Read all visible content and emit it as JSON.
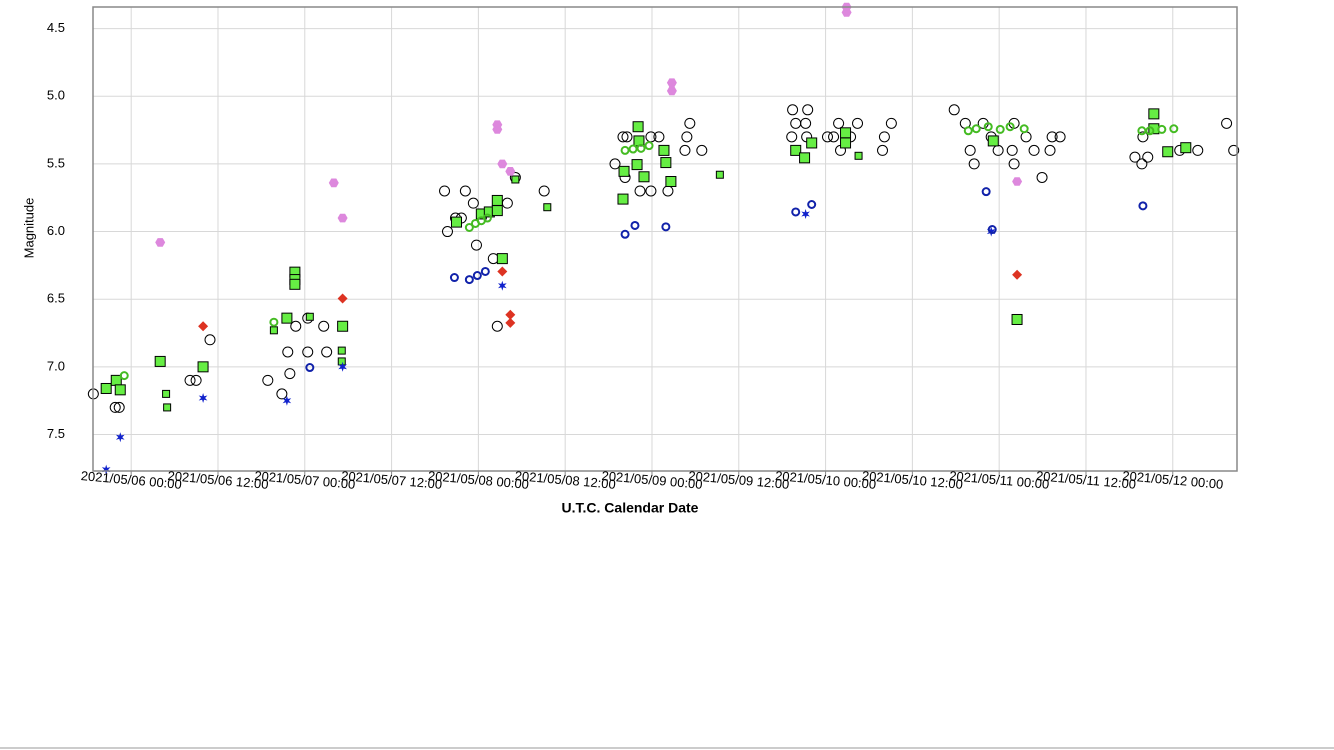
{
  "chart_data": {
    "type": "scatter",
    "x_label": "U.T.C. Calendar Date",
    "y_label": "Magnitude",
    "xlim": [
      5.78,
      12.37
    ],
    "ylim": [
      4.34,
      7.77
    ],
    "y_inverted": true,
    "grid": true,
    "xticks": [
      {
        "value": 6.0,
        "label": "2021/05/06 00:00"
      },
      {
        "value": 6.5,
        "label": "2021/05/06 12:00"
      },
      {
        "value": 7.0,
        "label": "2021/05/07 00:00"
      },
      {
        "value": 7.5,
        "label": "2021/05/07 12:00"
      },
      {
        "value": 8.0,
        "label": "2021/05/08 00:00"
      },
      {
        "value": 8.5,
        "label": "2021/05/08 12:00"
      },
      {
        "value": 9.0,
        "label": "2021/05/09 00:00"
      },
      {
        "value": 9.5,
        "label": "2021/05/09 12:00"
      },
      {
        "value": 10.0,
        "label": "2021/05/10 00:00"
      },
      {
        "value": 10.5,
        "label": "2021/05/10 12:00"
      },
      {
        "value": 11.0,
        "label": "2021/05/11 00:00"
      },
      {
        "value": 11.5,
        "label": "2021/05/11 12:00"
      },
      {
        "value": 12.0,
        "label": "2021/05/12 00:00"
      }
    ],
    "yticks": [
      4.5,
      {
        "value": 5,
        "label": "5.0"
      },
      5.5,
      {
        "value": 6,
        "label": "6.0"
      },
      6.5,
      {
        "value": 7,
        "label": "7.0"
      },
      7.5
    ],
    "series": [
      {
        "marker": "circle",
        "color": "#000000",
        "x": [
          5.782,
          5.908,
          5.931,
          6.339,
          6.374,
          6.454,
          6.787,
          6.868,
          6.902,
          6.914,
          6.948,
          7.017,
          7.017,
          7.109,
          7.126,
          7.805,
          7.822,
          7.868,
          7.902,
          7.925,
          7.971,
          7.989,
          8.086,
          8.109,
          8.167,
          8.213,
          8.379,
          8.787,
          8.833,
          8.856,
          8.845,
          8.931,
          8.994,
          8.994,
          9.04,
          9.092,
          9.19,
          9.201,
          9.218,
          9.287,
          9.81,
          9.828,
          9.897,
          9.885,
          9.805,
          9.891,
          10.011,
          10.046,
          10.075,
          10.086,
          10.184,
          10.144,
          10.328,
          10.339,
          10.379,
          10.741,
          10.805,
          10.833,
          10.856,
          10.908,
          10.954,
          10.994,
          11.086,
          11.075,
          11.086,
          11.155,
          11.201,
          11.247,
          11.293,
          11.305,
          11.351,
          11.782,
          11.822,
          11.856,
          11.828,
          12.04,
          12.144,
          12.31,
          12.351
        ],
        "values": [
          7.2,
          7.3,
          7.3,
          7.1,
          7.1,
          6.8,
          7.1,
          7.2,
          6.89,
          7.05,
          6.7,
          6.89,
          6.64,
          6.7,
          6.89,
          5.7,
          6.0,
          5.9,
          5.9,
          5.7,
          5.79,
          6.1,
          6.2,
          6.7,
          5.79,
          5.6,
          5.7,
          5.5,
          5.3,
          5.3,
          5.6,
          5.7,
          5.3,
          5.7,
          5.3,
          5.7,
          5.4,
          5.3,
          5.2,
          5.4,
          5.1,
          5.2,
          5.1,
          5.2,
          5.3,
          5.3,
          5.3,
          5.3,
          5.2,
          5.4,
          5.2,
          5.3,
          5.4,
          5.3,
          5.2,
          5.1,
          5.2,
          5.4,
          5.5,
          5.2,
          5.3,
          5.4,
          5.2,
          5.4,
          5.5,
          5.3,
          5.4,
          5.6,
          5.4,
          5.3,
          5.3,
          5.45,
          5.5,
          5.45,
          5.3,
          5.4,
          5.4,
          5.2,
          5.4
        ]
      },
      {
        "marker": "square",
        "color": "#66ee44",
        "x": [
          5.856,
          5.914,
          5.937,
          6.167,
          6.414,
          6.897,
          6.943,
          6.943,
          6.943,
          7.218,
          7.874,
          8.017,
          8.063,
          8.109,
          8.109,
          8.138,
          8.833,
          8.839,
          8.92,
          8.925,
          8.914,
          8.954,
          9.069,
          9.08,
          9.109,
          9.828,
          9.879,
          9.92,
          10.115,
          10.115,
          10.966,
          11.103,
          11.891,
          11.891,
          11.971,
          12.075
        ],
        "values": [
          7.16,
          7.1,
          7.17,
          6.96,
          7.0,
          6.64,
          6.3,
          6.355,
          6.39,
          6.7,
          5.93,
          5.87,
          5.855,
          5.77,
          5.845,
          6.2,
          5.76,
          5.555,
          5.225,
          5.33,
          5.505,
          5.595,
          5.4,
          5.49,
          5.63,
          5.4,
          5.455,
          5.345,
          5.27,
          5.345,
          5.33,
          6.65,
          5.13,
          5.24,
          5.41,
          5.38
        ]
      },
      {
        "marker": "small-square",
        "color": "#66ee44",
        "x": [
          6.201,
          6.207,
          6.822,
          7.029,
          7.213,
          7.213,
          8.397,
          8.213,
          9.391,
          10.19
        ],
        "values": [
          7.2,
          7.3,
          6.73,
          6.63,
          6.88,
          6.96,
          5.82,
          5.615,
          5.58,
          5.44
        ]
      },
      {
        "marker": "open-circle",
        "color": "#44bb22",
        "x": [
          5.96,
          6.822,
          7.948,
          7.983,
          8.017,
          8.052,
          8.845,
          8.891,
          8.937,
          8.983,
          10.822,
          10.868,
          10.937,
          11.006,
          11.063,
          11.144,
          11.822,
          11.868,
          11.937,
          12.006
        ],
        "values": [
          7.065,
          6.67,
          5.97,
          5.94,
          5.92,
          5.9,
          5.4,
          5.39,
          5.385,
          5.365,
          5.255,
          5.24,
          5.225,
          5.245,
          5.225,
          5.24,
          5.255,
          5.255,
          5.245,
          5.24
        ]
      },
      {
        "marker": "star",
        "color": "#1122cc",
        "x": [
          5.856,
          5.937,
          6.414,
          6.897,
          7.218,
          8.138,
          9.885,
          10.954
        ],
        "values": [
          7.76,
          7.52,
          7.23,
          7.25,
          7.0,
          6.4,
          5.87,
          6.0
        ]
      },
      {
        "marker": "open-circle",
        "color": "#1122aa",
        "x": [
          7.029,
          7.862,
          7.948,
          7.994,
          8.04,
          8.845,
          8.902,
          9.08,
          9.828,
          9.92,
          10.925,
          10.96,
          11.828
        ],
        "values": [
          7.005,
          6.34,
          6.355,
          6.325,
          6.295,
          6.02,
          5.955,
          5.965,
          5.855,
          5.8,
          5.705,
          5.985,
          5.81
        ]
      },
      {
        "marker": "diamond",
        "color": "#dd3322",
        "x": [
          6.414,
          7.218,
          8.138,
          8.184,
          8.184,
          11.103
        ],
        "values": [
          6.7,
          6.495,
          6.295,
          6.615,
          6.675,
          6.32
        ]
      },
      {
        "marker": "hexagon",
        "color": "#dd88dd",
        "x": [
          6.167,
          7.167,
          7.218,
          8.109,
          8.109,
          8.138,
          8.184,
          9.115,
          9.115,
          10.121,
          10.121,
          11.103
        ],
        "values": [
          6.08,
          5.64,
          5.9,
          5.21,
          5.245,
          5.5,
          5.555,
          4.9,
          4.96,
          4.34,
          4.38,
          5.63
        ]
      }
    ]
  }
}
